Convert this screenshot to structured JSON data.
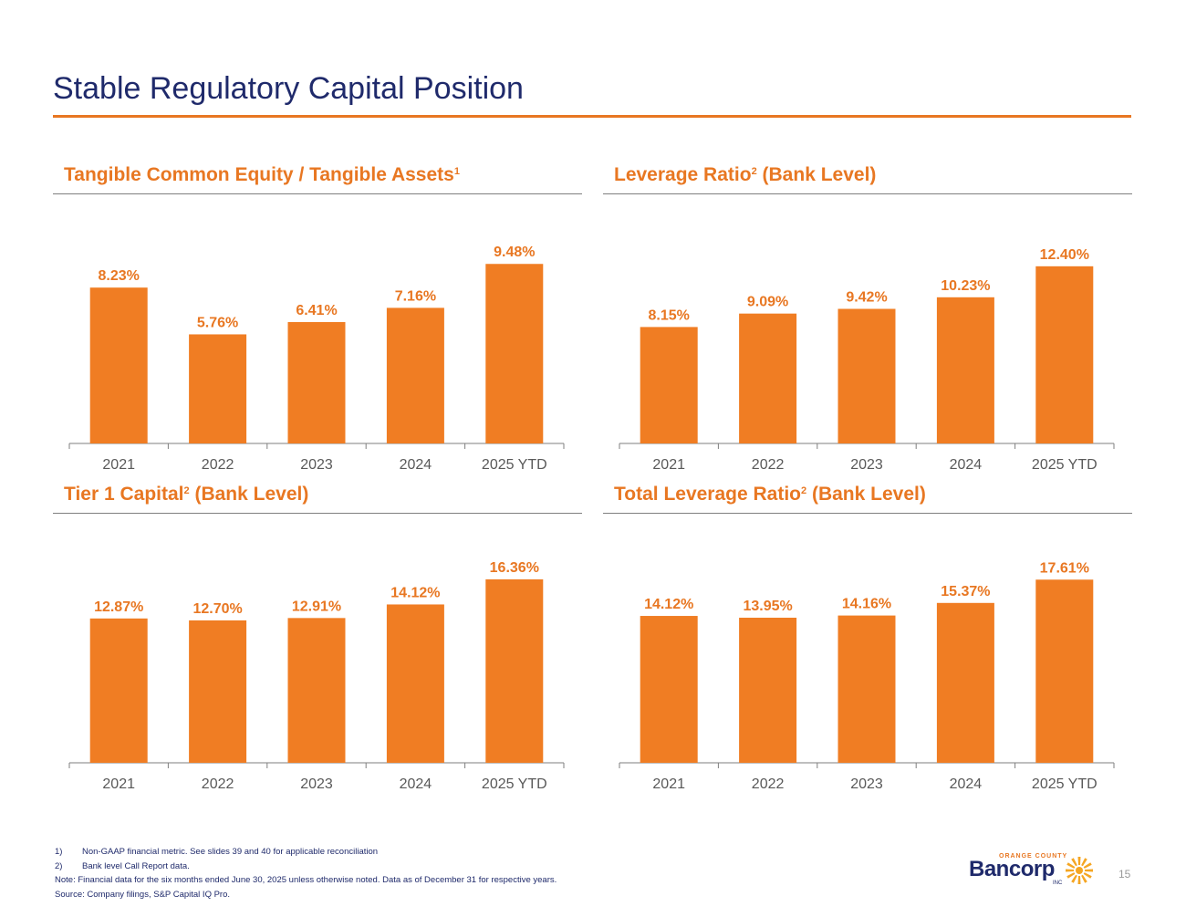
{
  "slide": {
    "title": "Stable Regulatory Capital Position",
    "page_number": "15"
  },
  "chart_data": [
    {
      "type": "bar",
      "title_main": "Tangible Common Equity / Tangible Assets",
      "title_sup": "1",
      "title_after": "",
      "categories": [
        "2021",
        "2022",
        "2023",
        "2024",
        "2025 YTD"
      ],
      "values": [
        8.23,
        5.76,
        6.41,
        7.16,
        9.48
      ],
      "labels": [
        "8.23%",
        "5.76%",
        "6.41%",
        "7.16%",
        "9.48%"
      ],
      "ylim": [
        0,
        10.6
      ]
    },
    {
      "type": "bar",
      "title_main": "Leverage Ratio",
      "title_sup": "2",
      "title_after": " (Bank Level)",
      "categories": [
        "2021",
        "2022",
        "2023",
        "2024",
        "2025 YTD"
      ],
      "values": [
        8.15,
        9.09,
        9.42,
        10.23,
        12.4
      ],
      "labels": [
        "8.15%",
        "9.09%",
        "9.42%",
        "10.23%",
        "12.40%"
      ],
      "ylim": [
        0,
        14.05
      ]
    },
    {
      "type": "bar",
      "title_main": "Tier 1 Capital",
      "title_sup": "2",
      "title_after": " (Bank Level)",
      "categories": [
        "2021",
        "2022",
        "2023",
        "2024",
        "2025 YTD"
      ],
      "values": [
        12.87,
        12.7,
        12.91,
        14.12,
        16.36
      ],
      "labels": [
        "12.87%",
        "12.70%",
        "12.91%",
        "14.12%",
        "16.36%"
      ],
      "ylim": [
        0,
        17.9
      ]
    },
    {
      "type": "bar",
      "title_main": "Total Leverage Ratio",
      "title_sup": "2",
      "title_after": " (Bank Level)",
      "categories": [
        "2021",
        "2022",
        "2023",
        "2024",
        "2025 YTD"
      ],
      "values": [
        14.12,
        13.95,
        14.16,
        15.37,
        17.61
      ],
      "labels": [
        "14.12%",
        "13.95%",
        "14.16%",
        "15.37%",
        "17.61%"
      ],
      "ylim": [
        0,
        19.3
      ]
    }
  ],
  "footnotes": {
    "n1": "1)",
    "t1": "Non-GAAP financial metric. See slides 39 and 40 for applicable reconciliation",
    "n2": "2)",
    "t2": "Bank level Call Report data.",
    "note": "Note: Financial data for the six months ended June 30, 2025 unless otherwise noted. Data as of December 31 for respective years.",
    "source": "Source: Company filings, S&P Capital IQ Pro."
  },
  "logo": {
    "top": "ORANGE COUNTY",
    "main": "Bancorp",
    "inc": "INC",
    "icon": "sunburst-icon"
  }
}
